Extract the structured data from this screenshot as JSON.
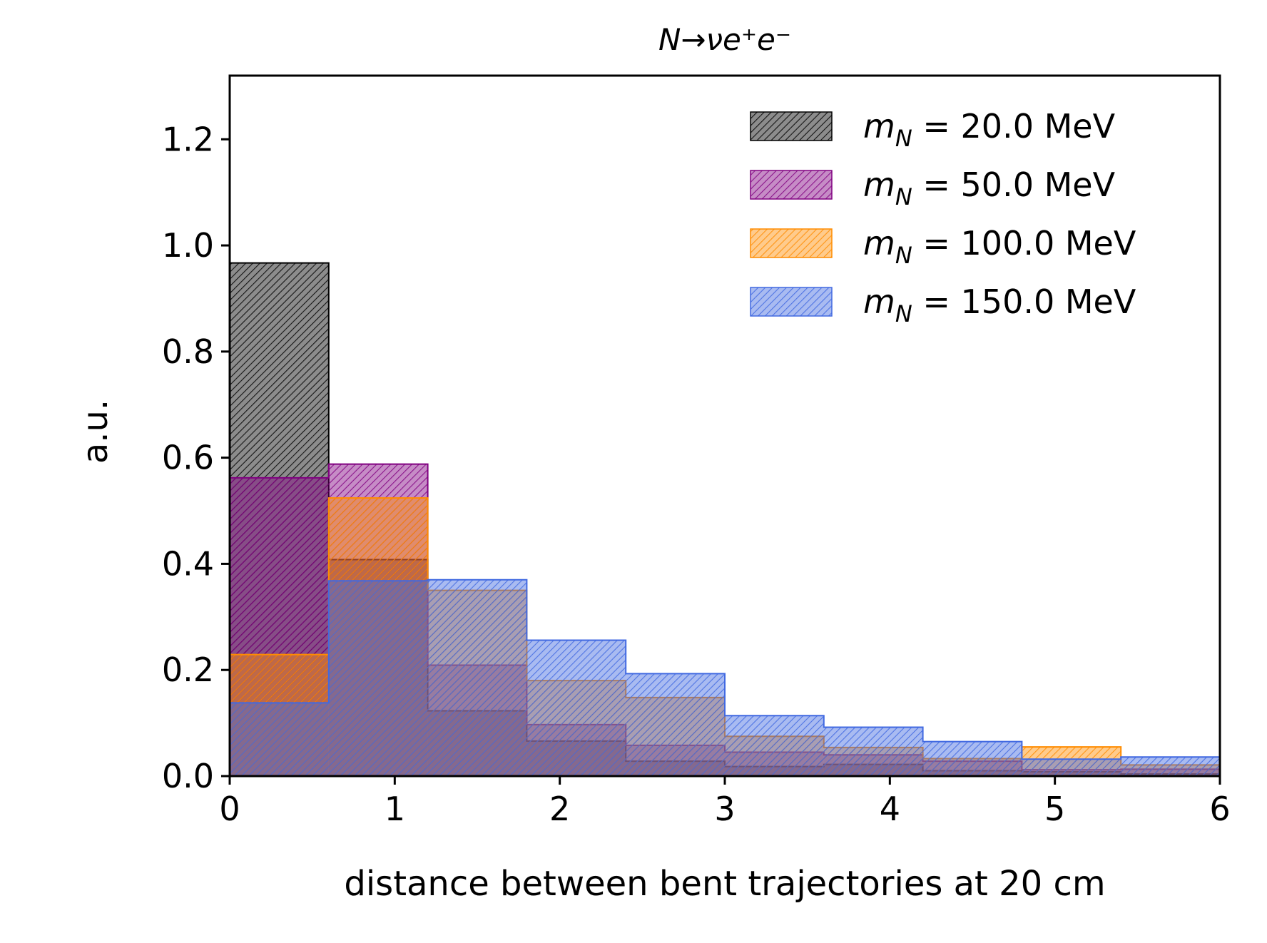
{
  "chart_data": {
    "type": "histogram",
    "title": "N→νe⁺e⁻",
    "xlabel": "distance between bent trajectories at 20 cm",
    "ylabel": "a.u.",
    "xlim": [
      0,
      6
    ],
    "ylim": [
      0,
      1.32
    ],
    "x_ticks": [
      "0",
      "1",
      "2",
      "3",
      "4",
      "5",
      "6"
    ],
    "y_ticks": [
      "0.0",
      "0.2",
      "0.4",
      "0.6",
      "0.8",
      "1.0",
      "1.2"
    ],
    "bin_edges": [
      0,
      0.6,
      1.2,
      1.8,
      2.4,
      3.0,
      3.6,
      4.2,
      4.8,
      5.4,
      6.0
    ],
    "legend_position": "top-right",
    "grid": false,
    "series": [
      {
        "name": "m_N = 20.0 MeV",
        "legend_math": "m",
        "legend_sub": "N",
        "legend_text": " = 20.0 MeV",
        "color": "#000000",
        "values": [
          0.967,
          0.408,
          0.123,
          0.066,
          0.028,
          0.018,
          0.022,
          0.01,
          0.008,
          0.004
        ]
      },
      {
        "name": "m_N = 50.0 MeV",
        "legend_math": "m",
        "legend_sub": "N",
        "legend_text": " = 50.0 MeV",
        "color": "#800080",
        "values": [
          0.562,
          0.588,
          0.209,
          0.097,
          0.058,
          0.045,
          0.04,
          0.028,
          0.012,
          0.013
        ]
      },
      {
        "name": "m_N = 100.0 MeV",
        "legend_math": "m",
        "legend_sub": "N",
        "legend_text": " = 100.0 MeV",
        "color": "#FF8C00",
        "values": [
          0.229,
          0.524,
          0.35,
          0.18,
          0.148,
          0.075,
          0.054,
          0.033,
          0.055,
          0.021
        ]
      },
      {
        "name": "m_N = 150.0 MeV",
        "legend_math": "m",
        "legend_sub": "N",
        "legend_text": " = 150.0 MeV",
        "color": "#4169E1",
        "values": [
          0.138,
          0.368,
          0.37,
          0.256,
          0.193,
          0.114,
          0.092,
          0.065,
          0.032,
          0.036
        ]
      }
    ]
  }
}
